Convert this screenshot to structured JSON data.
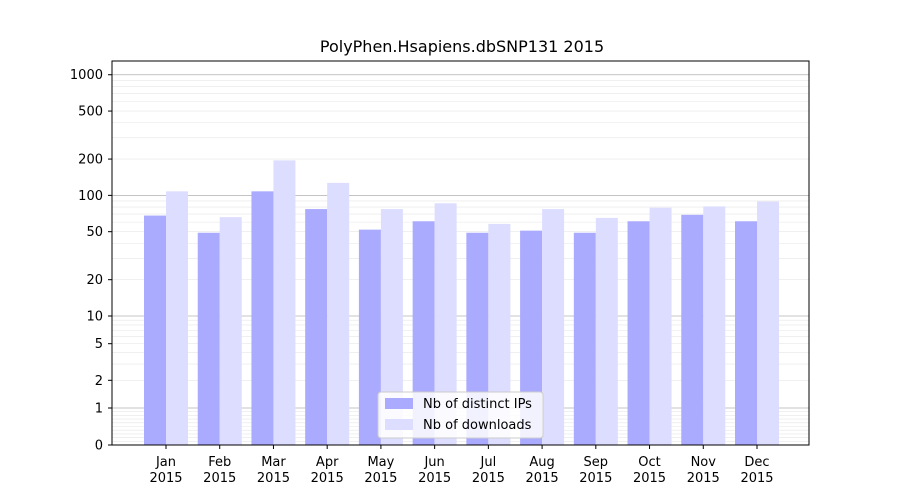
{
  "chart_data": {
    "type": "bar",
    "title": "PolyPhen.Hsapiens.dbSNP131 2015",
    "xlabel": "",
    "ylabel": "",
    "yscale": "symlog",
    "ylim": [
      0,
      1300
    ],
    "yticks": [
      0,
      1,
      2,
      5,
      10,
      20,
      50,
      100,
      200,
      500,
      1000
    ],
    "ytick_labels": [
      "0",
      "1",
      "2",
      "5",
      "10",
      "20",
      "50",
      "100",
      "200",
      "500",
      "1000"
    ],
    "categories": [
      [
        "Jan",
        "2015"
      ],
      [
        "Feb",
        "2015"
      ],
      [
        "Mar",
        "2015"
      ],
      [
        "Apr",
        "2015"
      ],
      [
        "May",
        "2015"
      ],
      [
        "Jun",
        "2015"
      ],
      [
        "Jul",
        "2015"
      ],
      [
        "Aug",
        "2015"
      ],
      [
        "Sep",
        "2015"
      ],
      [
        "Oct",
        "2015"
      ],
      [
        "Nov",
        "2015"
      ],
      [
        "Dec",
        "2015"
      ]
    ],
    "series": [
      {
        "name": "Nb of distinct IPs",
        "color": "#aaaaff",
        "values": [
          68,
          49,
          108,
          77,
          52,
          61,
          49,
          51,
          49,
          61,
          69,
          61
        ]
      },
      {
        "name": "Nb of downloads",
        "color": "#ddddff",
        "values": [
          108,
          66,
          195,
          127,
          77,
          86,
          58,
          77,
          65,
          79,
          81,
          89
        ]
      }
    ],
    "grid": "y",
    "legend_position": "lower-center"
  }
}
